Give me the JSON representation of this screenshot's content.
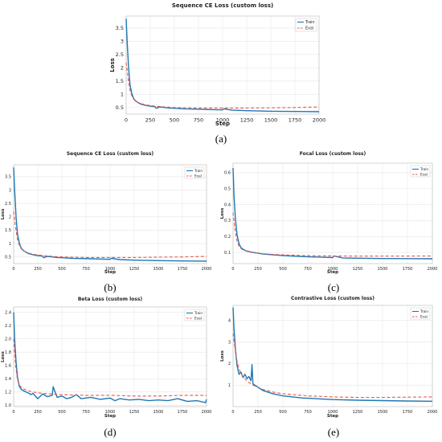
{
  "colors": {
    "train": "#1f77b4",
    "eval": "#e8584f",
    "grid": "#e6e6e6",
    "axis": "#333333"
  },
  "captions": {
    "a": "(a)",
    "b": "(b)",
    "c": "(c)",
    "d": "(d)",
    "e": "(e)"
  },
  "chart_data": [
    {
      "id": "a",
      "type": "line",
      "title": "Sequence CE Loss (custom loss)",
      "xlabel": "Step",
      "ylabel": "Loss",
      "xlim": [
        0,
        2000
      ],
      "ylim": [
        0.25,
        3.95
      ],
      "xticks": [
        0,
        250,
        500,
        750,
        1000,
        1250,
        1500,
        1750,
        2000
      ],
      "yticks": [
        0.5,
        1.0,
        1.5,
        2.0,
        2.5,
        3.0,
        3.5
      ],
      "ytick_labels": [
        "0.5",
        "1",
        "1.5",
        "2",
        "2.5",
        "3",
        "3.5"
      ],
      "grid": true,
      "legend_position": "top-right",
      "series": [
        {
          "name": "Train",
          "style": "solid",
          "x": [
            0,
            10,
            25,
            40,
            60,
            80,
            100,
            130,
            160,
            200,
            250,
            300,
            310,
            350,
            400,
            450,
            500,
            600,
            700,
            800,
            900,
            1000,
            1010,
            1100,
            1250,
            1500,
            1750,
            2000
          ],
          "y": [
            3.85,
            3.0,
            2.0,
            1.35,
            1.0,
            0.82,
            0.74,
            0.67,
            0.62,
            0.58,
            0.55,
            0.53,
            0.47,
            0.52,
            0.5,
            0.48,
            0.47,
            0.45,
            0.44,
            0.43,
            0.42,
            0.41,
            0.45,
            0.4,
            0.38,
            0.36,
            0.35,
            0.34
          ]
        },
        {
          "name": "Eval",
          "style": "dashed",
          "x": [
            0,
            20,
            40,
            60,
            80,
            100,
            150,
            200,
            300,
            400,
            500,
            750,
            1000,
            1250,
            1500,
            1750,
            2000
          ],
          "y": [
            2.2,
            1.6,
            1.15,
            0.92,
            0.8,
            0.73,
            0.65,
            0.6,
            0.55,
            0.52,
            0.5,
            0.48,
            0.48,
            0.48,
            0.49,
            0.5,
            0.52
          ]
        }
      ]
    },
    {
      "id": "b",
      "type": "line",
      "title": "Sequence CE Loss (custom loss)",
      "xlabel": "Step",
      "ylabel": "Loss",
      "xlim": [
        0,
        2000
      ],
      "ylim": [
        0.25,
        3.95
      ],
      "xticks": [
        0,
        250,
        500,
        750,
        1000,
        1250,
        1500,
        1750,
        2000
      ],
      "yticks": [
        0.5,
        1.0,
        1.5,
        2.0,
        2.5,
        3.0,
        3.5
      ],
      "ytick_labels": [
        "0.5",
        "1",
        "1.5",
        "2",
        "2.5",
        "3",
        "3.5"
      ],
      "grid": true,
      "legend_position": "top-right",
      "series": [
        {
          "name": "Train",
          "style": "solid",
          "x": [
            0,
            10,
            25,
            40,
            60,
            80,
            100,
            130,
            160,
            200,
            250,
            300,
            310,
            350,
            400,
            450,
            500,
            600,
            700,
            800,
            900,
            1000,
            1010,
            1100,
            1250,
            1500,
            1750,
            2000
          ],
          "y": [
            3.85,
            3.0,
            2.0,
            1.35,
            1.0,
            0.82,
            0.74,
            0.67,
            0.62,
            0.58,
            0.55,
            0.53,
            0.47,
            0.52,
            0.5,
            0.48,
            0.47,
            0.45,
            0.44,
            0.43,
            0.42,
            0.41,
            0.45,
            0.4,
            0.38,
            0.36,
            0.35,
            0.34
          ]
        },
        {
          "name": "Eval",
          "style": "dashed",
          "x": [
            0,
            20,
            40,
            60,
            80,
            100,
            150,
            200,
            300,
            400,
            500,
            750,
            1000,
            1250,
            1500,
            1750,
            2000
          ],
          "y": [
            2.2,
            1.6,
            1.15,
            0.92,
            0.8,
            0.73,
            0.65,
            0.6,
            0.55,
            0.52,
            0.5,
            0.48,
            0.48,
            0.48,
            0.49,
            0.5,
            0.52
          ]
        }
      ]
    },
    {
      "id": "c",
      "type": "line",
      "title": "Focal Loss (custom loss)",
      "xlabel": "Step",
      "ylabel": "Loss",
      "xlim": [
        0,
        2000
      ],
      "ylim": [
        0.03,
        0.66
      ],
      "xticks": [
        0,
        250,
        500,
        750,
        1000,
        1250,
        1500,
        1750,
        2000
      ],
      "yticks": [
        0.1,
        0.2,
        0.3,
        0.4,
        0.5,
        0.6
      ],
      "ytick_labels": [
        "0.1",
        "0.2",
        "0.3",
        "0.4",
        "0.5",
        "0.6"
      ],
      "grid": true,
      "legend_position": "top-right",
      "series": [
        {
          "name": "Train",
          "style": "solid",
          "x": [
            0,
            10,
            25,
            40,
            60,
            80,
            100,
            130,
            160,
            200,
            250,
            300,
            350,
            400,
            500,
            600,
            700,
            800,
            900,
            1000,
            1010,
            1100,
            1250,
            1500,
            1750,
            2000
          ],
          "y": [
            0.63,
            0.45,
            0.3,
            0.21,
            0.155,
            0.13,
            0.12,
            0.11,
            0.105,
            0.1,
            0.095,
            0.09,
            0.088,
            0.085,
            0.08,
            0.077,
            0.074,
            0.072,
            0.07,
            0.068,
            0.078,
            0.066,
            0.064,
            0.062,
            0.061,
            0.06
          ]
        },
        {
          "name": "Eval",
          "style": "dashed",
          "x": [
            0,
            20,
            40,
            60,
            80,
            100,
            150,
            200,
            300,
            400,
            500,
            750,
            1000,
            1250,
            1500,
            1750,
            2000
          ],
          "y": [
            0.35,
            0.24,
            0.17,
            0.14,
            0.125,
            0.115,
            0.105,
            0.098,
            0.092,
            0.088,
            0.085,
            0.08,
            0.078,
            0.077,
            0.077,
            0.077,
            0.078
          ]
        }
      ]
    },
    {
      "id": "d",
      "type": "line",
      "title": "Beta Loss (custom loss)",
      "xlabel": "Step",
      "ylabel": "Loss",
      "xlim": [
        0,
        2000
      ],
      "ylim": [
        0.98,
        2.48
      ],
      "xticks": [
        0,
        250,
        500,
        750,
        1000,
        1250,
        1500,
        1750,
        2000
      ],
      "yticks": [
        1.0,
        1.2,
        1.4,
        1.6,
        1.8,
        2.0,
        2.2,
        2.4
      ],
      "ytick_labels": [
        "1.0",
        "1.2",
        "1.4",
        "1.6",
        "1.8",
        "2.0",
        "2.2",
        "2.4"
      ],
      "grid": true,
      "legend_position": "top-right",
      "series": [
        {
          "name": "Train",
          "style": "solid",
          "x": [
            0,
            10,
            25,
            40,
            60,
            80,
            100,
            130,
            160,
            180,
            200,
            250,
            300,
            350,
            400,
            410,
            450,
            500,
            550,
            600,
            650,
            700,
            800,
            900,
            1000,
            1050,
            1100,
            1200,
            1300,
            1400,
            1500,
            1600,
            1700,
            1800,
            1900,
            1990,
            2000
          ],
          "y": [
            2.4,
            2.0,
            1.65,
            1.42,
            1.28,
            1.24,
            1.22,
            1.2,
            1.18,
            1.16,
            1.18,
            1.1,
            1.17,
            1.13,
            1.15,
            1.28,
            1.12,
            1.14,
            1.1,
            1.12,
            1.16,
            1.1,
            1.12,
            1.09,
            1.11,
            1.07,
            1.1,
            1.08,
            1.09,
            1.07,
            1.08,
            1.07,
            1.1,
            1.06,
            1.07,
            1.04,
            1.09
          ]
        },
        {
          "name": "Eval",
          "style": "dashed",
          "x": [
            0,
            20,
            40,
            60,
            80,
            100,
            150,
            200,
            300,
            400,
            500,
            750,
            1000,
            1250,
            1500,
            1750,
            2000
          ],
          "y": [
            2.0,
            1.6,
            1.38,
            1.3,
            1.27,
            1.25,
            1.22,
            1.2,
            1.18,
            1.17,
            1.16,
            1.15,
            1.15,
            1.14,
            1.14,
            1.15,
            1.15
          ]
        }
      ]
    },
    {
      "id": "e",
      "type": "line",
      "title": "Contrastive Loss (custom loss)",
      "xlabel": "Step",
      "ylabel": "Loss",
      "xlim": [
        0,
        2000
      ],
      "ylim": [
        0.0,
        4.7
      ],
      "xticks": [
        0,
        250,
        500,
        750,
        1000,
        1250,
        1500,
        1750,
        2000
      ],
      "yticks": [
        1,
        2,
        3,
        4
      ],
      "ytick_labels": [
        "1",
        "2",
        "3",
        "4"
      ],
      "grid": true,
      "legend_position": "top-right",
      "series": [
        {
          "name": "Train",
          "style": "solid",
          "x": [
            0,
            10,
            25,
            40,
            60,
            80,
            100,
            120,
            140,
            160,
            180,
            190,
            200,
            250,
            300,
            400,
            500,
            600,
            700,
            800,
            900,
            1000,
            1250,
            1500,
            1750,
            2000
          ],
          "y": [
            4.6,
            3.6,
            2.6,
            1.9,
            1.5,
            1.6,
            1.35,
            1.5,
            1.3,
            1.4,
            1.2,
            1.95,
            1.05,
            0.9,
            0.75,
            0.6,
            0.5,
            0.45,
            0.4,
            0.38,
            0.35,
            0.33,
            0.3,
            0.28,
            0.26,
            0.25
          ]
        },
        {
          "name": "Eval",
          "style": "dashed",
          "x": [
            0,
            20,
            40,
            60,
            80,
            100,
            150,
            200,
            300,
            400,
            500,
            750,
            1000,
            1250,
            1500,
            1750,
            2000
          ],
          "y": [
            3.4,
            2.7,
            2.1,
            1.75,
            1.55,
            1.4,
            1.15,
            1.0,
            0.8,
            0.68,
            0.6,
            0.5,
            0.45,
            0.43,
            0.43,
            0.44,
            0.45
          ]
        }
      ]
    }
  ]
}
